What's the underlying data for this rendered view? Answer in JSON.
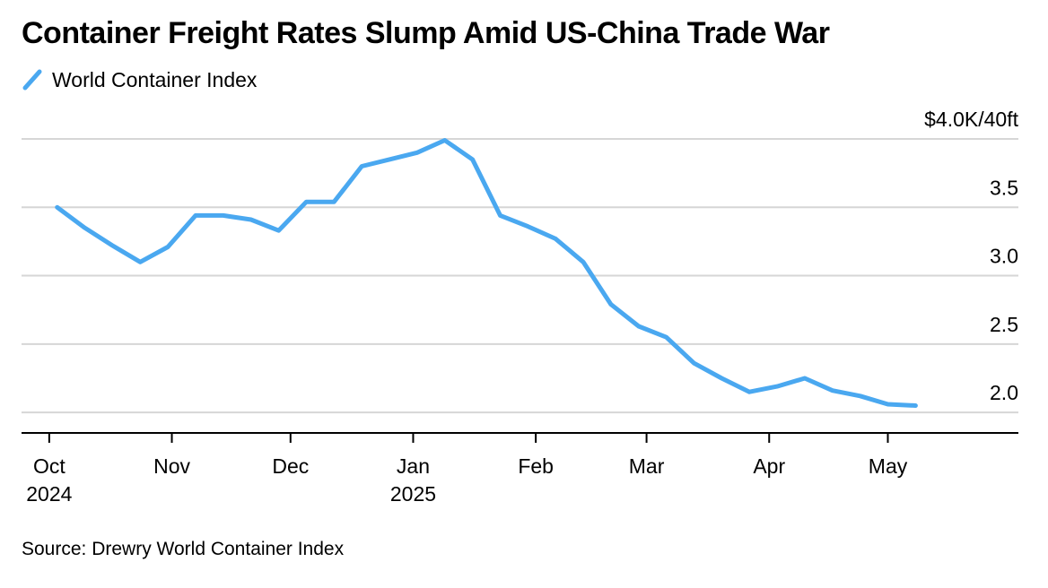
{
  "chart_data": {
    "type": "line",
    "title": "Container Freight Rates Slump Amid US-China Trade War",
    "legend": "top-left",
    "series": [
      {
        "name": "World Container Index",
        "color": "#4aa8f0",
        "points": [
          {
            "x": "2024-10-03",
            "y": 3.5
          },
          {
            "x": "2024-10-10",
            "y": 3.35
          },
          {
            "x": "2024-10-17",
            "y": 3.22
          },
          {
            "x": "2024-10-24",
            "y": 3.1
          },
          {
            "x": "2024-10-31",
            "y": 3.21
          },
          {
            "x": "2024-11-07",
            "y": 3.44
          },
          {
            "x": "2024-11-14",
            "y": 3.44
          },
          {
            "x": "2024-11-21",
            "y": 3.41
          },
          {
            "x": "2024-11-28",
            "y": 3.33
          },
          {
            "x": "2024-12-05",
            "y": 3.54
          },
          {
            "x": "2024-12-12",
            "y": 3.54
          },
          {
            "x": "2024-12-19",
            "y": 3.8
          },
          {
            "x": "2024-12-26",
            "y": 3.85
          },
          {
            "x": "2025-01-02",
            "y": 3.9
          },
          {
            "x": "2025-01-09",
            "y": 3.99
          },
          {
            "x": "2025-01-16",
            "y": 3.85
          },
          {
            "x": "2025-01-23",
            "y": 3.44
          },
          {
            "x": "2025-01-30",
            "y": 3.36
          },
          {
            "x": "2025-02-06",
            "y": 3.27
          },
          {
            "x": "2025-02-13",
            "y": 3.1
          },
          {
            "x": "2025-02-20",
            "y": 2.79
          },
          {
            "x": "2025-02-27",
            "y": 2.63
          },
          {
            "x": "2025-03-06",
            "y": 2.55
          },
          {
            "x": "2025-03-13",
            "y": 2.36
          },
          {
            "x": "2025-03-20",
            "y": 2.25
          },
          {
            "x": "2025-03-27",
            "y": 2.15
          },
          {
            "x": "2025-04-03",
            "y": 2.19
          },
          {
            "x": "2025-04-10",
            "y": 2.25
          },
          {
            "x": "2025-04-17",
            "y": 2.16
          },
          {
            "x": "2025-04-24",
            "y": 2.12
          },
          {
            "x": "2025-05-01",
            "y": 2.06
          },
          {
            "x": "2025-05-08",
            "y": 2.05
          }
        ]
      }
    ],
    "x_ticks": [
      {
        "date": "2024-10-01",
        "label": "Oct",
        "sublabel": "2024"
      },
      {
        "date": "2024-11-01",
        "label": "Nov",
        "sublabel": ""
      },
      {
        "date": "2024-12-01",
        "label": "Dec",
        "sublabel": ""
      },
      {
        "date": "2025-01-01",
        "label": "Jan",
        "sublabel": "2025"
      },
      {
        "date": "2025-02-01",
        "label": "Feb",
        "sublabel": ""
      },
      {
        "date": "2025-03-01",
        "label": "Mar",
        "sublabel": ""
      },
      {
        "date": "2025-04-01",
        "label": "Apr",
        "sublabel": ""
      },
      {
        "date": "2025-05-01",
        "label": "May",
        "sublabel": ""
      }
    ],
    "y_ticks": [
      {
        "value": 4.0,
        "label": "$4.0K/40ft"
      },
      {
        "value": 3.5,
        "label": "3.5"
      },
      {
        "value": 3.0,
        "label": "3.0"
      },
      {
        "value": 2.5,
        "label": "2.5"
      },
      {
        "value": 2.0,
        "label": "2.0"
      }
    ],
    "ylim": [
      1.85,
      4.0
    ],
    "xlim": [
      "2024-09-24",
      "2025-06-03"
    ],
    "grid": true,
    "source": "Source: Drewry World Container Index"
  }
}
